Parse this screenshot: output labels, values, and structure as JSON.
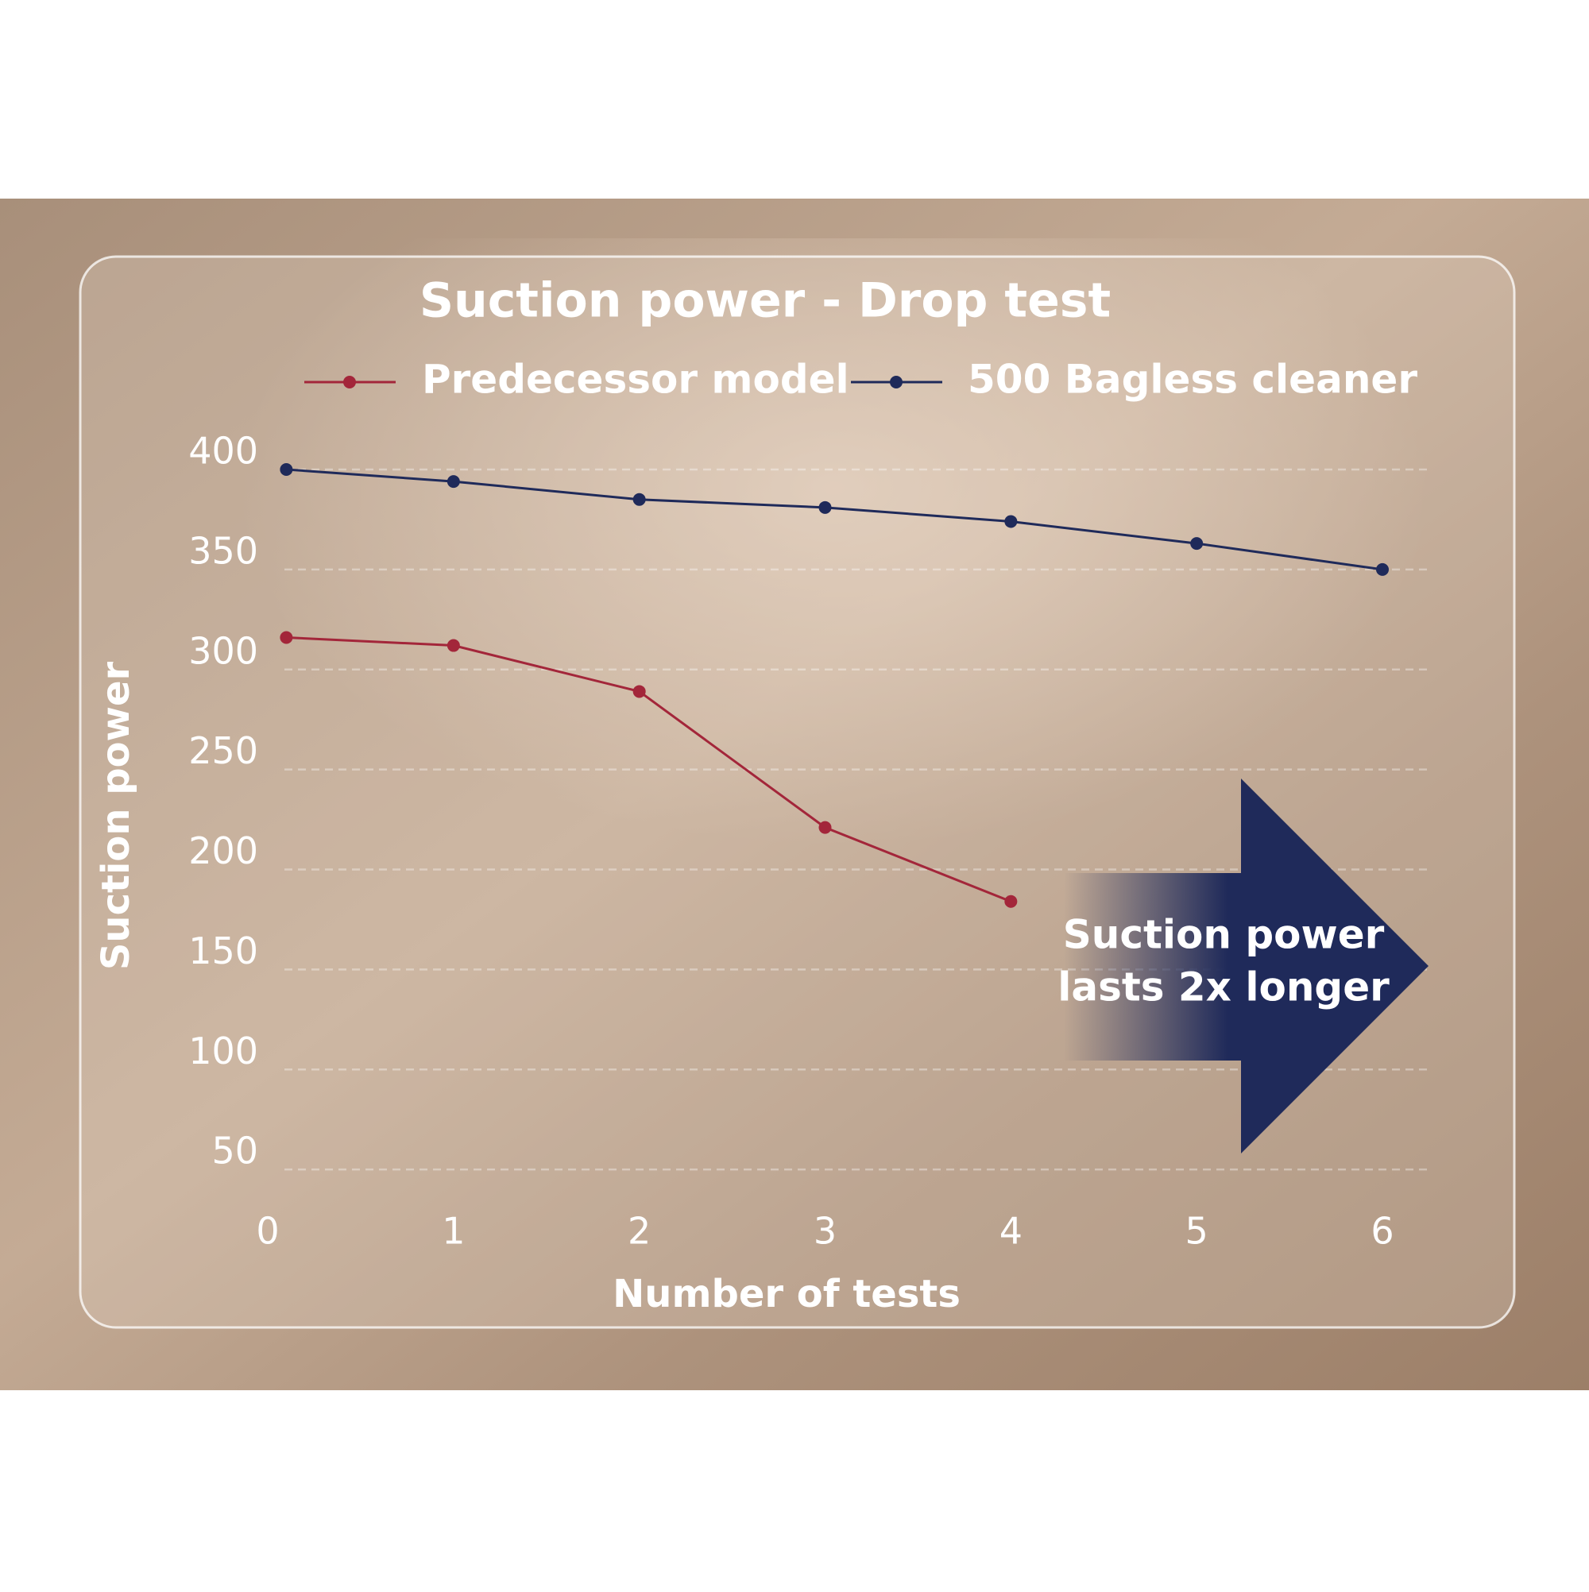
{
  "chart_data": {
    "type": "line",
    "title": "Suction power - Drop test",
    "y_label": "Suction power",
    "x_label": "Number of tests",
    "annotation": [
      "Suction power",
      "lasts 2x longer"
    ],
    "series": [
      {
        "name": "Predecessor model",
        "color": "#a3263a",
        "x": [
          0.1,
          1,
          2,
          3,
          4
        ],
        "values": [
          316,
          312,
          289,
          221,
          184
        ]
      },
      {
        "name": "500 Bagless cleaner",
        "color": "#1f2a5a",
        "x": [
          0.1,
          1,
          2,
          3,
          4,
          5,
          6
        ],
        "values": [
          400,
          394,
          385,
          381,
          374,
          363,
          350
        ]
      }
    ],
    "xlim": [
      0,
      6
    ],
    "xticks": [
      0,
      1,
      2,
      3,
      4,
      5,
      6
    ],
    "ylim": [
      0,
      400
    ],
    "yticks": [
      50,
      100,
      150,
      200,
      250,
      300,
      350,
      400
    ],
    "grid": true,
    "legend": "top"
  }
}
